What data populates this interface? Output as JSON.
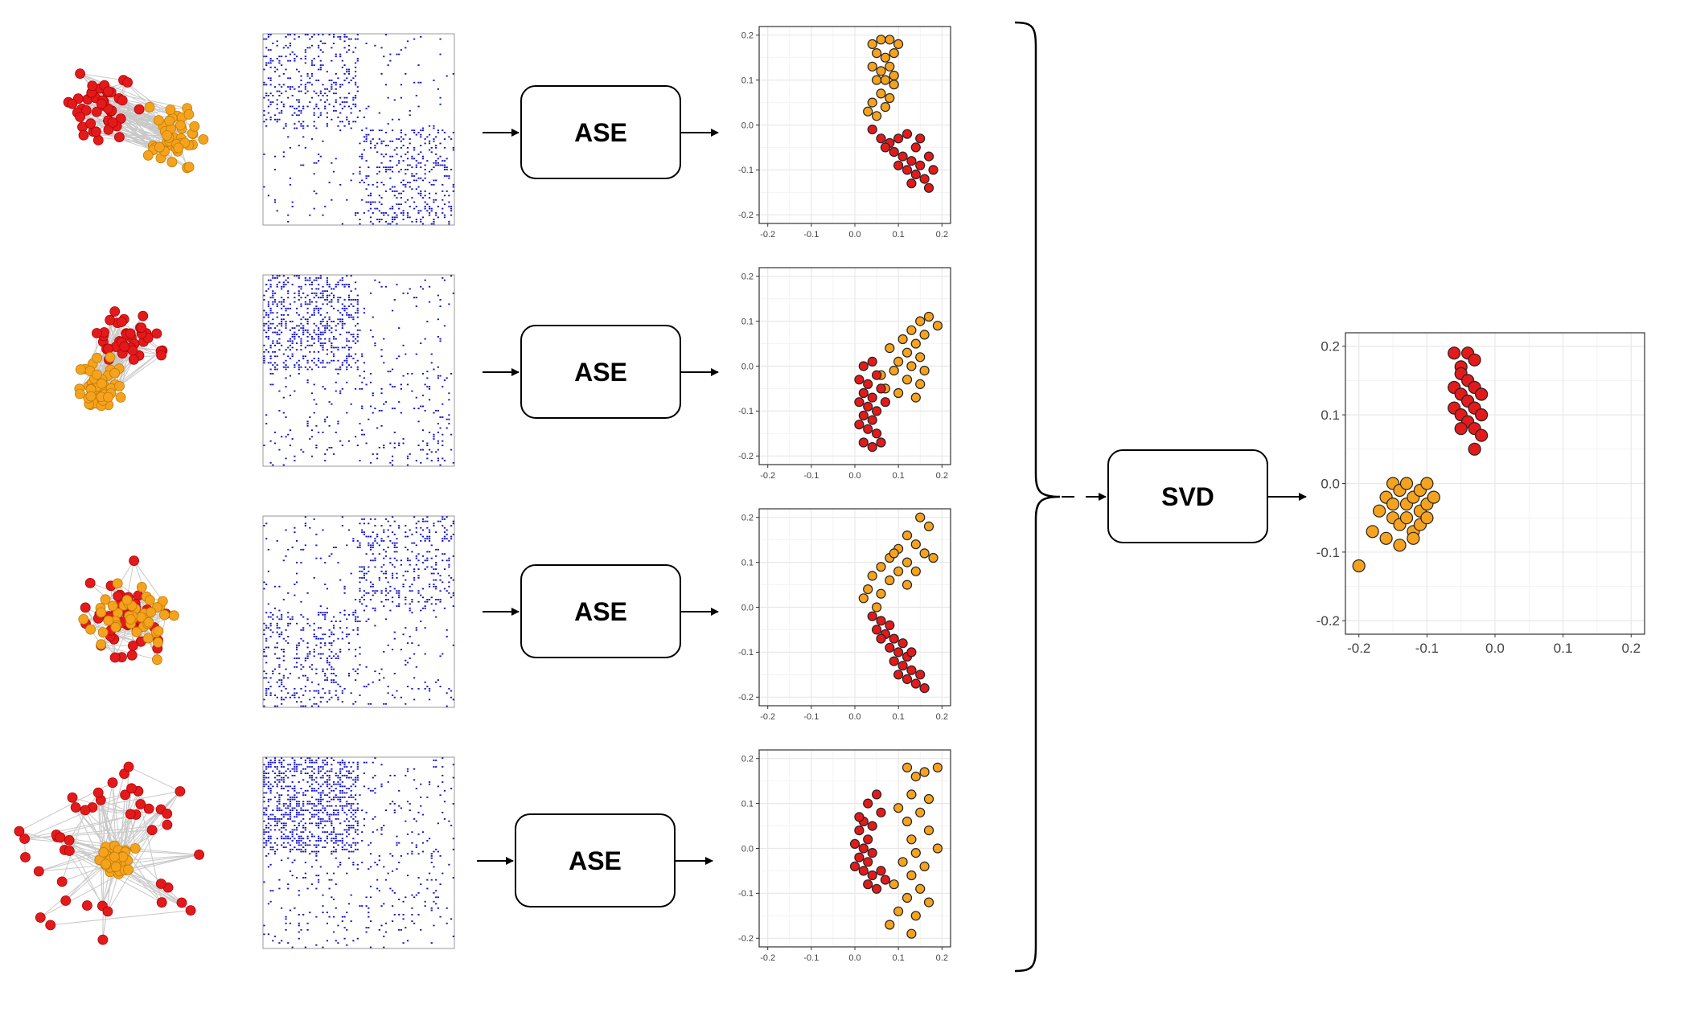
{
  "colors": {
    "community_a": "#e31a1c",
    "community_b": "#f5a31e",
    "adjacency_dot": "#1010c8",
    "edge": "#c8c8c8",
    "grid": "#e8e8e8"
  },
  "pipeline": {
    "ase_label": "ASE",
    "svd_label": "SVD"
  },
  "rows": [
    {
      "graph_style": "side-by-side",
      "matrix_pattern": "top-left-and-bottom-right"
    },
    {
      "graph_style": "overlapping",
      "matrix_pattern": "top-left"
    },
    {
      "graph_style": "mixed",
      "matrix_pattern": "top-right-and-bottom-left"
    },
    {
      "graph_style": "core-periphery",
      "matrix_pattern": "top-left-dense"
    }
  ],
  "chart_data": [
    {
      "type": "scatter",
      "xlim": [
        -0.2,
        0.2
      ],
      "ylim": [
        -0.2,
        0.2
      ],
      "xticks": [
        "-0.2",
        "-0.1",
        "0.0",
        "0.1",
        "0.2"
      ],
      "yticks": [
        "0.2",
        "0.1",
        "0.0",
        "-0.1",
        "-0.2"
      ],
      "grid": true,
      "series": [
        {
          "color": "#f5a31e",
          "points": [
            [
              0.04,
              0.18
            ],
            [
              0.06,
              0.19
            ],
            [
              0.08,
              0.19
            ],
            [
              0.1,
              0.18
            ],
            [
              0.05,
              0.16
            ],
            [
              0.07,
              0.15
            ],
            [
              0.09,
              0.16
            ],
            [
              0.04,
              0.13
            ],
            [
              0.06,
              0.12
            ],
            [
              0.08,
              0.13
            ],
            [
              0.05,
              0.1
            ],
            [
              0.07,
              0.1
            ],
            [
              0.09,
              0.09
            ],
            [
              0.06,
              0.07
            ],
            [
              0.08,
              0.06
            ],
            [
              0.04,
              0.05
            ],
            [
              0.07,
              0.04
            ],
            [
              0.03,
              0.03
            ],
            [
              0.05,
              0.02
            ],
            [
              0.09,
              0.11
            ]
          ]
        },
        {
          "color": "#e31a1c",
          "points": [
            [
              0.04,
              -0.01
            ],
            [
              0.06,
              -0.03
            ],
            [
              0.08,
              -0.04
            ],
            [
              0.1,
              -0.03
            ],
            [
              0.12,
              -0.02
            ],
            [
              0.14,
              -0.05
            ],
            [
              0.09,
              -0.06
            ],
            [
              0.11,
              -0.07
            ],
            [
              0.13,
              -0.08
            ],
            [
              0.15,
              -0.09
            ],
            [
              0.1,
              -0.09
            ],
            [
              0.12,
              -0.1
            ],
            [
              0.14,
              -0.11
            ],
            [
              0.16,
              -0.12
            ],
            [
              0.17,
              -0.14
            ],
            [
              0.13,
              -0.13
            ],
            [
              0.18,
              -0.1
            ],
            [
              0.07,
              -0.05
            ],
            [
              0.15,
              -0.03
            ],
            [
              0.17,
              -0.07
            ]
          ]
        }
      ]
    },
    {
      "type": "scatter",
      "xlim": [
        -0.2,
        0.2
      ],
      "ylim": [
        -0.2,
        0.2
      ],
      "xticks": [
        "-0.2",
        "-0.1",
        "0.0",
        "0.1",
        "0.2"
      ],
      "yticks": [
        "0.2",
        "0.1",
        "0.0",
        "-0.1",
        "-0.2"
      ],
      "grid": true,
      "series": [
        {
          "color": "#f5a31e",
          "points": [
            [
              0.17,
              0.11
            ],
            [
              0.15,
              0.1
            ],
            [
              0.19,
              0.09
            ],
            [
              0.13,
              0.08
            ],
            [
              0.16,
              0.07
            ],
            [
              0.11,
              0.06
            ],
            [
              0.14,
              0.05
            ],
            [
              0.08,
              0.04
            ],
            [
              0.12,
              0.03
            ],
            [
              0.15,
              0.02
            ],
            [
              0.1,
              0.01
            ],
            [
              0.13,
              0.0
            ],
            [
              0.09,
              -0.01
            ],
            [
              0.06,
              -0.02
            ],
            [
              0.12,
              -0.03
            ],
            [
              0.15,
              -0.04
            ],
            [
              0.07,
              -0.05
            ],
            [
              0.1,
              -0.06
            ],
            [
              0.16,
              -0.01
            ],
            [
              0.14,
              -0.07
            ]
          ]
        },
        {
          "color": "#e31a1c",
          "points": [
            [
              0.04,
              0.01
            ],
            [
              0.02,
              0.0
            ],
            [
              0.05,
              -0.02
            ],
            [
              0.01,
              -0.03
            ],
            [
              0.03,
              -0.04
            ],
            [
              0.06,
              -0.05
            ],
            [
              0.02,
              -0.06
            ],
            [
              0.04,
              -0.07
            ],
            [
              0.01,
              -0.08
            ],
            [
              0.03,
              -0.09
            ],
            [
              0.05,
              -0.1
            ],
            [
              0.02,
              -0.11
            ],
            [
              0.04,
              -0.12
            ],
            [
              0.01,
              -0.13
            ],
            [
              0.03,
              -0.14
            ],
            [
              0.05,
              -0.15
            ],
            [
              0.02,
              -0.17
            ],
            [
              0.04,
              -0.18
            ],
            [
              0.06,
              -0.17
            ],
            [
              0.07,
              -0.08
            ]
          ]
        }
      ]
    },
    {
      "type": "scatter",
      "xlim": [
        -0.2,
        0.2
      ],
      "ylim": [
        -0.2,
        0.2
      ],
      "xticks": [
        "-0.2",
        "-0.1",
        "0.0",
        "0.1",
        "0.2"
      ],
      "yticks": [
        "0.2",
        "0.1",
        "0.0",
        "-0.1",
        "-0.2"
      ],
      "grid": true,
      "series": [
        {
          "color": "#f5a31e",
          "points": [
            [
              0.15,
              0.2
            ],
            [
              0.17,
              0.18
            ],
            [
              0.12,
              0.16
            ],
            [
              0.14,
              0.14
            ],
            [
              0.1,
              0.13
            ],
            [
              0.16,
              0.12
            ],
            [
              0.18,
              0.11
            ],
            [
              0.08,
              0.11
            ],
            [
              0.12,
              0.1
            ],
            [
              0.06,
              0.09
            ],
            [
              0.1,
              0.08
            ],
            [
              0.14,
              0.08
            ],
            [
              0.04,
              0.07
            ],
            [
              0.08,
              0.06
            ],
            [
              0.12,
              0.05
            ],
            [
              0.03,
              0.04
            ],
            [
              0.06,
              0.03
            ],
            [
              0.02,
              0.02
            ],
            [
              0.05,
              0.0
            ],
            [
              0.09,
              0.12
            ]
          ]
        },
        {
          "color": "#e31a1c",
          "points": [
            [
              0.04,
              -0.02
            ],
            [
              0.06,
              -0.03
            ],
            [
              0.08,
              -0.04
            ],
            [
              0.05,
              -0.05
            ],
            [
              0.07,
              -0.06
            ],
            [
              0.09,
              -0.07
            ],
            [
              0.11,
              -0.08
            ],
            [
              0.08,
              -0.09
            ],
            [
              0.1,
              -0.1
            ],
            [
              0.12,
              -0.11
            ],
            [
              0.09,
              -0.12
            ],
            [
              0.11,
              -0.13
            ],
            [
              0.13,
              -0.14
            ],
            [
              0.15,
              -0.15
            ],
            [
              0.1,
              -0.15
            ],
            [
              0.12,
              -0.16
            ],
            [
              0.14,
              -0.17
            ],
            [
              0.16,
              -0.18
            ],
            [
              0.06,
              -0.07
            ],
            [
              0.13,
              -0.1
            ]
          ]
        }
      ]
    },
    {
      "type": "scatter",
      "xlim": [
        -0.2,
        0.2
      ],
      "ylim": [
        -0.2,
        0.2
      ],
      "xticks": [
        "-0.2",
        "-0.1",
        "0.0",
        "0.1",
        "0.2"
      ],
      "yticks": [
        "0.2",
        "0.1",
        "0.0",
        "-0.1",
        "-0.2"
      ],
      "grid": true,
      "series": [
        {
          "color": "#f5a31e",
          "points": [
            [
              0.12,
              0.18
            ],
            [
              0.16,
              0.17
            ],
            [
              0.19,
              0.18
            ],
            [
              0.14,
              0.16
            ],
            [
              0.13,
              0.12
            ],
            [
              0.17,
              0.11
            ],
            [
              0.1,
              0.09
            ],
            [
              0.15,
              0.08
            ],
            [
              0.12,
              0.06
            ],
            [
              0.17,
              0.04
            ],
            [
              0.13,
              0.02
            ],
            [
              0.19,
              0.0
            ],
            [
              0.14,
              -0.01
            ],
            [
              0.11,
              -0.03
            ],
            [
              0.16,
              -0.04
            ],
            [
              0.13,
              -0.06
            ],
            [
              0.09,
              -0.08
            ],
            [
              0.15,
              -0.09
            ],
            [
              0.12,
              -0.11
            ],
            [
              0.17,
              -0.12
            ],
            [
              0.1,
              -0.14
            ],
            [
              0.14,
              -0.15
            ],
            [
              0.08,
              -0.17
            ],
            [
              0.13,
              -0.19
            ]
          ]
        },
        {
          "color": "#e31a1c",
          "points": [
            [
              0.05,
              0.12
            ],
            [
              0.03,
              0.1
            ],
            [
              0.06,
              0.08
            ],
            [
              0.02,
              0.06
            ],
            [
              0.04,
              0.05
            ],
            [
              0.01,
              0.04
            ],
            [
              0.03,
              0.02
            ],
            [
              0.0,
              0.01
            ],
            [
              0.02,
              0.0
            ],
            [
              0.04,
              -0.01
            ],
            [
              0.01,
              -0.02
            ],
            [
              0.03,
              -0.03
            ],
            [
              0.0,
              -0.04
            ],
            [
              0.02,
              -0.05
            ],
            [
              0.04,
              -0.06
            ],
            [
              0.06,
              -0.05
            ],
            [
              0.03,
              -0.08
            ],
            [
              0.05,
              -0.09
            ],
            [
              0.07,
              -0.07
            ],
            [
              0.01,
              0.07
            ]
          ]
        }
      ]
    },
    {
      "type": "scatter",
      "xlim": [
        -0.2,
        0.2
      ],
      "ylim": [
        -0.2,
        0.2
      ],
      "xticks": [
        "-0.2",
        "-0.1",
        "0.0",
        "0.1",
        "0.2"
      ],
      "yticks": [
        "0.2",
        "0.1",
        "0.0",
        "-0.1",
        "-0.2"
      ],
      "grid": true,
      "series": [
        {
          "color": "#f5a31e",
          "points": [
            [
              -0.2,
              -0.12
            ],
            [
              -0.18,
              -0.07
            ],
            [
              -0.17,
              -0.04
            ],
            [
              -0.16,
              -0.02
            ],
            [
              -0.15,
              0.0
            ],
            [
              -0.14,
              -0.01
            ],
            [
              -0.13,
              -0.03
            ],
            [
              -0.12,
              -0.02
            ],
            [
              -0.11,
              -0.04
            ],
            [
              -0.1,
              -0.03
            ],
            [
              -0.15,
              -0.05
            ],
            [
              -0.14,
              -0.06
            ],
            [
              -0.13,
              -0.05
            ],
            [
              -0.12,
              -0.07
            ],
            [
              -0.11,
              -0.06
            ],
            [
              -0.16,
              -0.08
            ],
            [
              -0.14,
              -0.09
            ],
            [
              -0.12,
              -0.08
            ],
            [
              -0.1,
              -0.05
            ],
            [
              -0.09,
              -0.02
            ],
            [
              -0.13,
              0.0
            ],
            [
              -0.11,
              -0.01
            ],
            [
              -0.15,
              -0.03
            ],
            [
              -0.1,
              0.0
            ]
          ]
        },
        {
          "color": "#e31a1c",
          "points": [
            [
              -0.06,
              0.19
            ],
            [
              -0.04,
              0.19
            ],
            [
              -0.05,
              0.17
            ],
            [
              -0.03,
              0.18
            ],
            [
              -0.05,
              0.16
            ],
            [
              -0.04,
              0.15
            ],
            [
              -0.06,
              0.14
            ],
            [
              -0.03,
              0.14
            ],
            [
              -0.05,
              0.13
            ],
            [
              -0.02,
              0.13
            ],
            [
              -0.04,
              0.12
            ],
            [
              -0.06,
              0.11
            ],
            [
              -0.03,
              0.11
            ],
            [
              -0.05,
              0.1
            ],
            [
              -0.02,
              0.1
            ],
            [
              -0.04,
              0.09
            ],
            [
              -0.03,
              0.08
            ],
            [
              -0.05,
              0.08
            ],
            [
              -0.02,
              0.07
            ],
            [
              -0.03,
              0.05
            ]
          ]
        }
      ]
    }
  ]
}
